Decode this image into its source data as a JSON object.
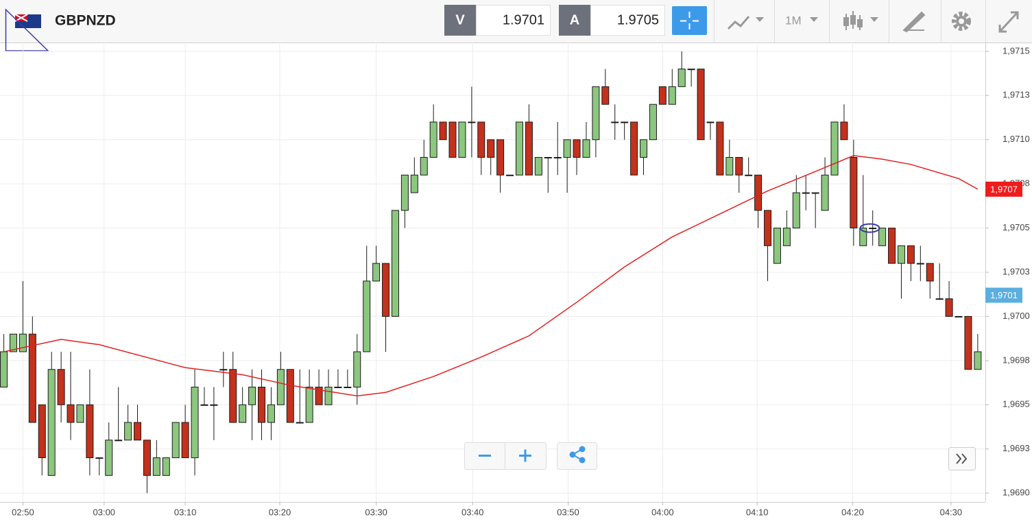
{
  "toolbar": {
    "symbol": "GBPNZD",
    "bid_label": "V",
    "bid": "1.9701",
    "ask_label": "A",
    "ask": "1.9705",
    "timeframe": "1M"
  },
  "chart_data": {
    "type": "candlestick",
    "up_color": "#8cc67f",
    "down_color": "#c4311c",
    "x": [
      0,
      1,
      2,
      3,
      4,
      5,
      6,
      7,
      8,
      9,
      10,
      11,
      12,
      13,
      14,
      15,
      16,
      17,
      18,
      19,
      20,
      21,
      22,
      23,
      24,
      25,
      26,
      27,
      28,
      29,
      30,
      31,
      32,
      33,
      34,
      35,
      36,
      37,
      38,
      39,
      40,
      41,
      42,
      43,
      44,
      45,
      46,
      47,
      48,
      49,
      50,
      51,
      52,
      53,
      54,
      55,
      56,
      57,
      58,
      59,
      60,
      61,
      62,
      63,
      64,
      65,
      66,
      67,
      68,
      69,
      70,
      71,
      72,
      73,
      74,
      75,
      76,
      77,
      78,
      79,
      80,
      81,
      82,
      83,
      84,
      85,
      86,
      87,
      88,
      89,
      90,
      91,
      92,
      93,
      94,
      95,
      96,
      97,
      98,
      99,
      100,
      101,
      102
    ],
    "open": [
      1.9696,
      1.9698,
      1.9698,
      1.9699,
      1.9695,
      1.9691,
      1.9697,
      1.9695,
      1.9694,
      1.9695,
      1.9692,
      1.9691,
      1.9693,
      1.9693,
      1.9694,
      1.9693,
      1.9691,
      1.9691,
      1.9692,
      1.9694,
      1.9692,
      1.9695,
      1.9695,
      1.9697,
      1.9697,
      1.9694,
      1.9695,
      1.9696,
      1.9694,
      1.9695,
      1.9697,
      1.9694,
      1.9694,
      1.9696,
      1.9695,
      1.9696,
      1.9696,
      1.9696,
      1.9698,
      1.9702,
      1.9703,
      1.97,
      1.9706,
      1.9707,
      1.9708,
      1.9709,
      1.9711,
      1.9711,
      1.9709,
      1.9711,
      1.9711,
      1.971,
      1.971,
      1.9708,
      1.9708,
      1.9711,
      1.9708,
      1.9709,
      1.9709,
      1.9709,
      1.971,
      1.9709,
      1.971,
      1.9713,
      1.9711,
      1.9711,
      1.9711,
      1.9709,
      1.971,
      1.9713,
      1.9712,
      1.9713,
      1.9714,
      1.9714,
      1.9711,
      1.9711,
      1.9708,
      1.9709,
      1.9708,
      1.9708,
      1.9706,
      1.9703,
      1.9704,
      1.9705,
      1.9707,
      1.9707,
      1.9706,
      1.9708,
      1.9711,
      1.9709,
      1.9704,
      1.9705,
      1.9704,
      1.9705,
      1.9703,
      1.9704,
      1.9703,
      1.9703,
      1.9701,
      1.9701,
      1.97,
      1.97,
      1.9697
    ],
    "high": [
      1.9699,
      1.9699,
      1.9702,
      1.97,
      1.9695,
      1.9698,
      1.9698,
      1.9698,
      1.9695,
      1.9697,
      1.9692,
      1.9694,
      1.9696,
      1.9695,
      1.9695,
      1.9693,
      1.9693,
      1.9692,
      1.9694,
      1.9695,
      1.9697,
      1.9696,
      1.9696,
      1.9698,
      1.9698,
      1.9696,
      1.9697,
      1.9697,
      1.9696,
      1.9698,
      1.9697,
      1.9697,
      1.9697,
      1.9697,
      1.9697,
      1.9697,
      1.9697,
      1.9699,
      1.9704,
      1.9704,
      1.9703,
      1.9706,
      1.9708,
      1.9709,
      1.971,
      1.9712,
      1.9711,
      1.9711,
      1.9711,
      1.9713,
      1.9711,
      1.971,
      1.971,
      1.9708,
      1.9711,
      1.9712,
      1.9709,
      1.9709,
      1.9711,
      1.971,
      1.971,
      1.9711,
      1.9713,
      1.9714,
      1.9712,
      1.9711,
      1.9711,
      1.971,
      1.9712,
      1.9713,
      1.9714,
      1.9715,
      1.9714,
      1.9714,
      1.9711,
      1.9711,
      1.971,
      1.9709,
      1.9709,
      1.9708,
      1.9706,
      1.9705,
      1.9706,
      1.9708,
      1.9708,
      1.9707,
      1.9709,
      1.9711,
      1.9712,
      1.971,
      1.9708,
      1.9706,
      1.9705,
      1.9705,
      1.9704,
      1.9704,
      1.9704,
      1.9703,
      1.9703,
      1.9702,
      1.97,
      1.97,
      1.9699
    ],
    "low": [
      1.9696,
      1.9698,
      1.9698,
      1.9694,
      1.9691,
      1.9691,
      1.9694,
      1.9693,
      1.9694,
      1.9691,
      1.9691,
      1.9691,
      1.9693,
      1.9693,
      1.9693,
      1.969,
      1.9691,
      1.9691,
      1.9692,
      1.9692,
      1.9691,
      1.9695,
      1.9693,
      1.9696,
      1.9694,
      1.9694,
      1.9693,
      1.9693,
      1.9693,
      1.9695,
      1.9694,
      1.9694,
      1.9694,
      1.9695,
      1.9695,
      1.9696,
      1.9696,
      1.9695,
      1.9698,
      1.9702,
      1.9698,
      1.97,
      1.9705,
      1.9707,
      1.9708,
      1.9709,
      1.971,
      1.9709,
      1.9709,
      1.9709,
      1.9708,
      1.9708,
      1.9707,
      1.9708,
      1.9708,
      1.9708,
      1.9708,
      1.9707,
      1.9708,
      1.9707,
      1.9708,
      1.9709,
      1.9709,
      1.9712,
      1.971,
      1.971,
      1.9708,
      1.9708,
      1.971,
      1.9712,
      1.9712,
      1.9713,
      1.9713,
      1.971,
      1.971,
      1.9708,
      1.9708,
      1.9707,
      1.9708,
      1.9705,
      1.9702,
      1.9703,
      1.9704,
      1.9705,
      1.9706,
      1.9705,
      1.9706,
      1.9708,
      1.971,
      1.9704,
      1.9704,
      1.9704,
      1.9704,
      1.9703,
      1.9701,
      1.9702,
      1.9702,
      1.9701,
      1.9701,
      1.97,
      1.97,
      1.9697,
      1.9697
    ],
    "close": [
      1.9698,
      1.9699,
      1.9699,
      1.9694,
      1.9692,
      1.9697,
      1.9695,
      1.9694,
      1.9695,
      1.9692,
      1.9692,
      1.9693,
      1.9693,
      1.9694,
      1.9693,
      1.9691,
      1.9692,
      1.9692,
      1.9694,
      1.9692,
      1.9696,
      1.9695,
      1.9695,
      1.9697,
      1.9694,
      1.9695,
      1.9696,
      1.9694,
      1.9695,
      1.9697,
      1.9694,
      1.9694,
      1.9696,
      1.9695,
      1.9696,
      1.9696,
      1.9696,
      1.9698,
      1.9702,
      1.9703,
      1.97,
      1.9706,
      1.9708,
      1.9708,
      1.9709,
      1.9711,
      1.971,
      1.9709,
      1.9711,
      1.9711,
      1.9709,
      1.9709,
      1.9708,
      1.9708,
      1.9711,
      1.9708,
      1.9709,
      1.9709,
      1.9709,
      1.971,
      1.9709,
      1.971,
      1.9713,
      1.9712,
      1.9711,
      1.9711,
      1.9708,
      1.971,
      1.9712,
      1.9712,
      1.9713,
      1.9714,
      1.9714,
      1.971,
      1.9711,
      1.9708,
      1.9709,
      1.9708,
      1.9708,
      1.9706,
      1.9704,
      1.9705,
      1.9705,
      1.9707,
      1.9707,
      1.9707,
      1.9708,
      1.9711,
      1.971,
      1.9705,
      1.9705,
      1.9705,
      1.9705,
      1.9703,
      1.9704,
      1.9703,
      1.9703,
      1.9702,
      1.9701,
      1.97,
      1.97,
      1.9697,
      1.9698
    ],
    "line": {
      "color": "#e02020",
      "x": [
        0,
        6,
        10,
        19,
        25,
        30,
        37,
        40,
        45,
        50,
        55,
        60,
        65,
        70,
        75,
        80,
        85,
        89,
        92,
        95,
        100,
        102
      ],
      "values": [
        1.9698,
        1.96987,
        1.96984,
        1.96971,
        1.96967,
        1.96961,
        1.96955,
        1.96957,
        1.96966,
        1.96977,
        1.96989,
        1.97008,
        1.97028,
        1.97045,
        1.97058,
        1.97071,
        1.97082,
        1.97091,
        1.97089,
        1.97086,
        1.97078,
        1.97072
      ]
    },
    "price_labels": [
      {
        "value": 1.97072,
        "label": "1,9707",
        "color": "#ee1c1c"
      },
      {
        "value": 1.97012,
        "label": "1,9701",
        "color": "#5aaee0"
      }
    ],
    "ellipse": {
      "x": 90.7,
      "y": 1.9705,
      "color": "#3a3aa8"
    },
    "xlim": [
      -0.4,
      102.8
    ],
    "ylim": [
      1.96895,
      1.97155
    ],
    "xticks": [
      {
        "value": 2,
        "label": "02:50"
      },
      {
        "value": 10.5,
        "label": "03:00"
      },
      {
        "value": 19,
        "label": "03:10"
      },
      {
        "value": 28.9,
        "label": "03:20"
      },
      {
        "value": 39,
        "label": "03:30"
      },
      {
        "value": 49.1,
        "label": "03:40"
      },
      {
        "value": 59.1,
        "label": "03:50"
      },
      {
        "value": 69,
        "label": "04:00"
      },
      {
        "value": 78.9,
        "label": "04:10"
      },
      {
        "value": 88.9,
        "label": "04:20"
      },
      {
        "value": 99.2,
        "label": "04:30"
      }
    ],
    "yticks": [
      {
        "value": 1.969,
        "label": "1,9690"
      },
      {
        "value": 1.96925,
        "label": "1,9693"
      },
      {
        "value": 1.9695,
        "label": "1,9695"
      },
      {
        "value": 1.96975,
        "label": "1,9698"
      },
      {
        "value": 1.97,
        "label": "1,9700"
      },
      {
        "value": 1.97025,
        "label": "1,9703"
      },
      {
        "value": 1.9705,
        "label": "1,9705"
      },
      {
        "value": 1.97075,
        "label": "1,9708"
      },
      {
        "value": 1.971,
        "label": "1,9710"
      },
      {
        "value": 1.97125,
        "label": "1,9713"
      },
      {
        "value": 1.9715,
        "label": "1,9715"
      }
    ],
    "grid": true
  }
}
